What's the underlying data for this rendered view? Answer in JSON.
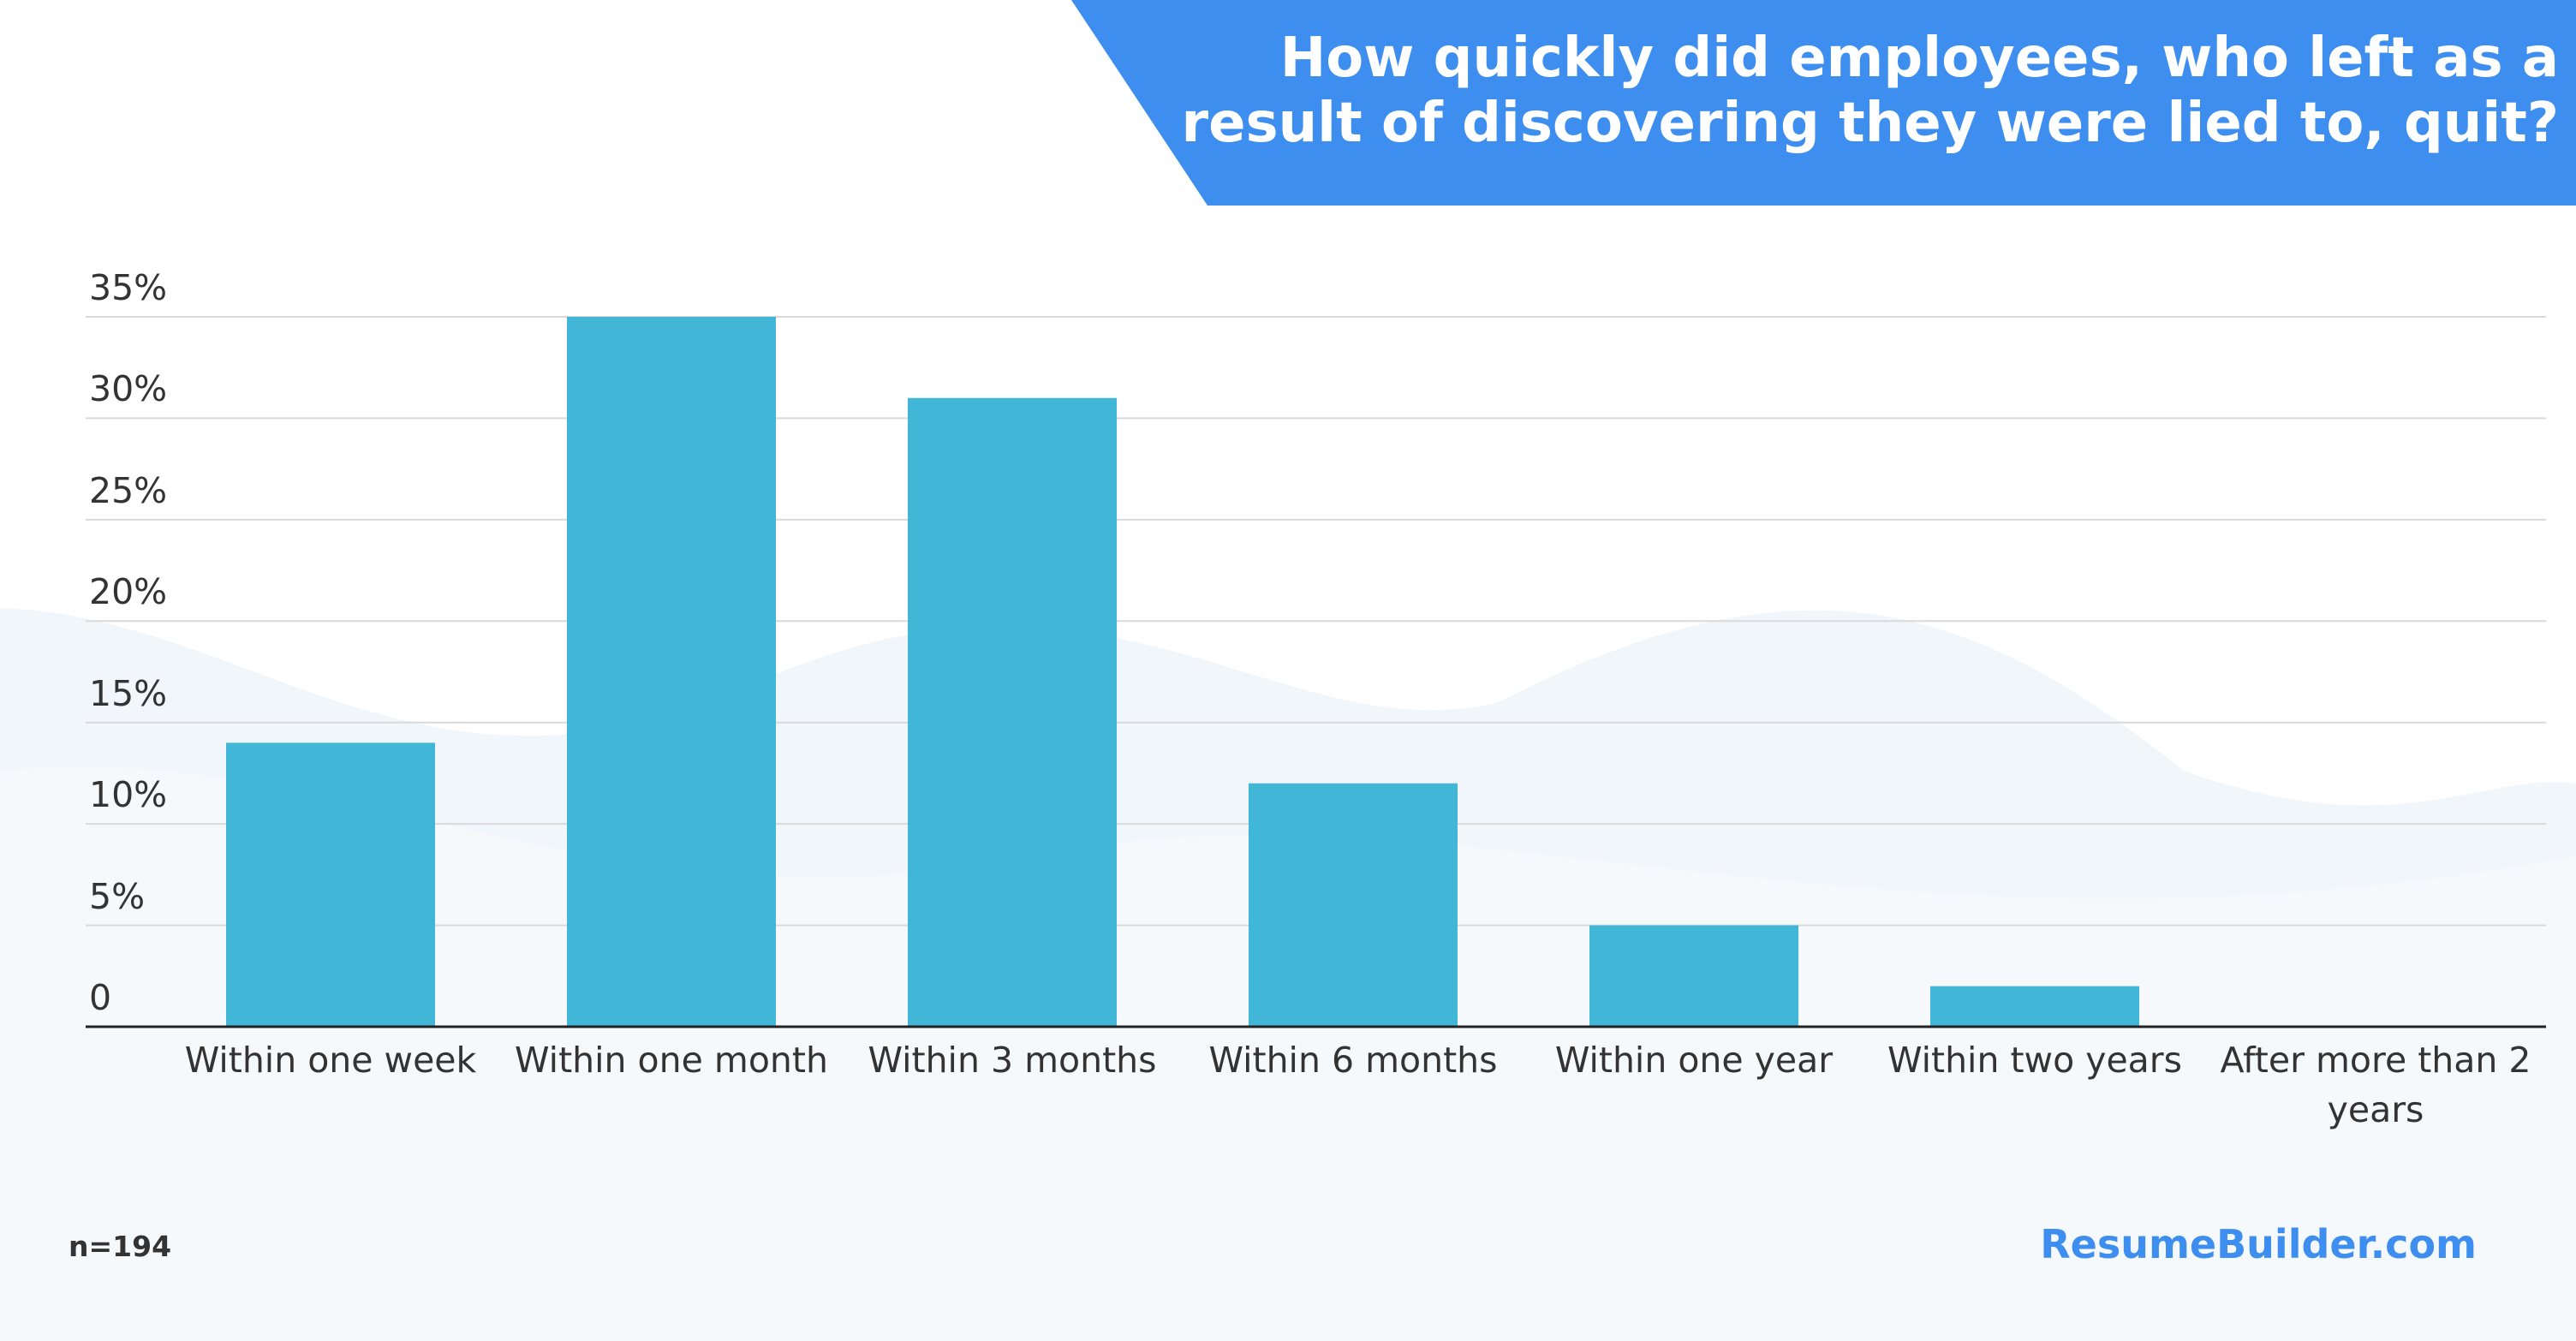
{
  "chart_data": {
    "type": "bar",
    "title": "How quickly did employees, who left as a result of discovering they were lied to, quit?",
    "categories": [
      "Within one week",
      "Within one month",
      "Within 3 months",
      "Within 6 months",
      "Within one year",
      "Within two years",
      "After more than 2 years"
    ],
    "values": [
      14,
      35,
      31,
      12,
      5,
      2,
      0
    ],
    "color": "#42b6d6",
    "ylim": [
      0,
      35
    ],
    "yticks": [
      0,
      {
        "value": 5,
        "label": "5%"
      },
      {
        "value": 10,
        "label": "10%"
      },
      {
        "value": 15,
        "label": "15%"
      },
      {
        "value": 20,
        "label": "20%"
      },
      {
        "value": 25,
        "label": "25%"
      },
      {
        "value": 30,
        "label": "30%"
      },
      {
        "value": 35,
        "label": "35%"
      }
    ],
    "grid": true,
    "note": "n=194",
    "source": "ResumeBuilder.com"
  }
}
